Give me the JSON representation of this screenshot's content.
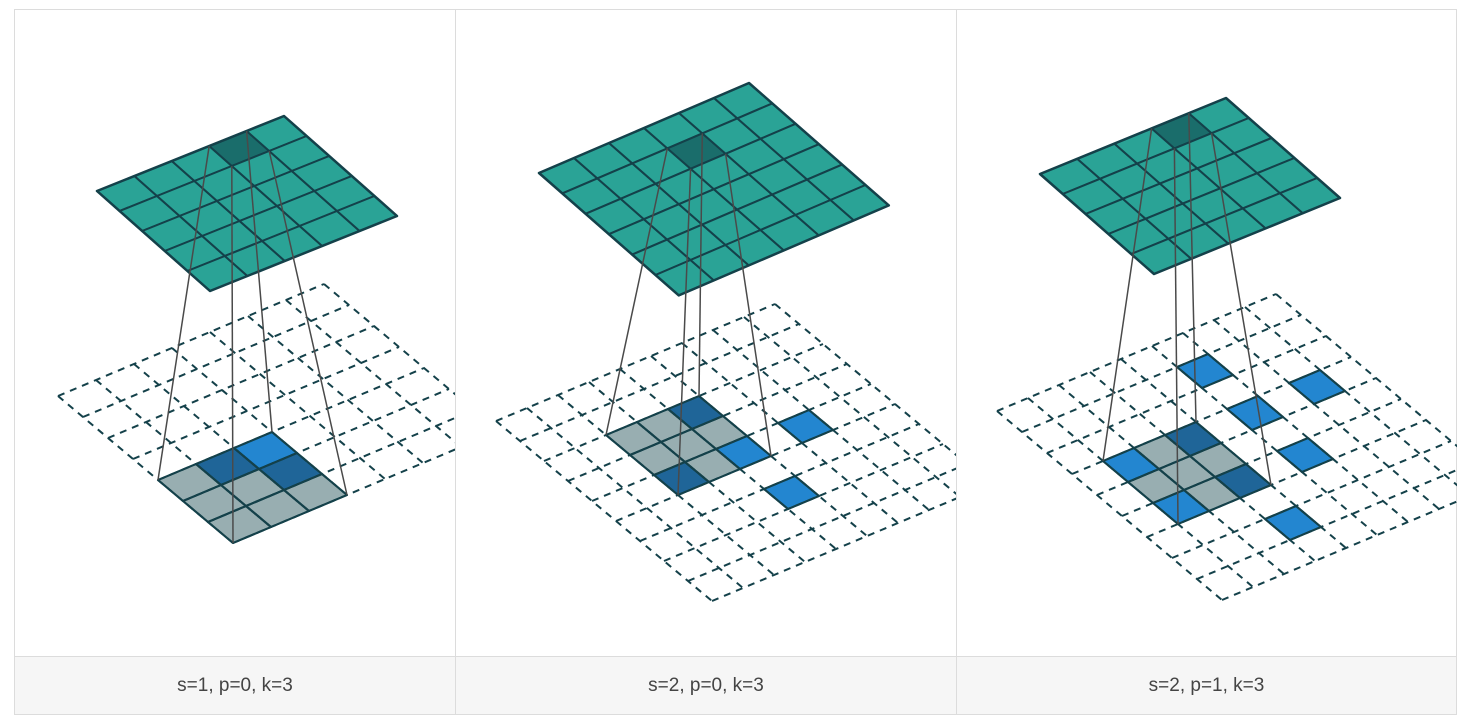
{
  "colors": {
    "output_fill": "#2aa396",
    "output_active": "#1a6d6b",
    "input_gray": "#98aeb1",
    "input_blue": "#2386d0",
    "input_dark_blue": "#1f6598",
    "stroke": "#14414a",
    "lines": "#4a4a4a"
  },
  "panels": [
    {
      "caption": "s=1, p=0, k=3",
      "diagram": {
        "stride": 1,
        "padding": 0,
        "kernel": 3,
        "input_grid": 7,
        "output_grid": 5,
        "active_output_cell": [
          3,
          0
        ],
        "kernel_window": [
          [
            0,
            4
          ],
          [
            1,
            4
          ],
          [
            2,
            4
          ],
          [
            0,
            5
          ],
          [
            1,
            5
          ],
          [
            2,
            5
          ],
          [
            0,
            6
          ],
          [
            1,
            6
          ],
          [
            2,
            6
          ]
        ],
        "blue_cells": [
          [
            1,
            4
          ],
          [
            2,
            4
          ],
          [
            2,
            5
          ]
        ],
        "dark_blue_cells": [
          [
            1,
            4
          ],
          [
            2,
            5
          ]
        ]
      }
    },
    {
      "caption": "s=2, p=0, k=3",
      "diagram": {
        "stride": 2,
        "padding": 0,
        "kernel": 3,
        "input_grid": 9,
        "output_grid": 6,
        "active_output_cell": [
          3,
          1
        ],
        "kernel_window": [
          [
            2,
            2
          ],
          [
            3,
            2
          ],
          [
            4,
            2
          ],
          [
            2,
            3
          ],
          [
            3,
            3
          ],
          [
            4,
            3
          ],
          [
            2,
            4
          ],
          [
            3,
            4
          ],
          [
            4,
            4
          ]
        ],
        "blue_cells": [
          [
            2,
            4
          ],
          [
            4,
            2
          ],
          [
            4,
            4
          ],
          [
            6,
            4
          ],
          [
            4,
            6
          ]
        ],
        "dark_blue_cells": [
          [
            2,
            4
          ],
          [
            4,
            2
          ]
        ]
      }
    },
    {
      "caption": "s=2, p=1, k=3",
      "diagram": {
        "stride": 2,
        "padding": 1,
        "kernel": 3,
        "input_grid": 9,
        "output_grid": 5,
        "active_output_cell": [
          3,
          0
        ],
        "kernel_window": [
          [
            1,
            3
          ],
          [
            2,
            3
          ],
          [
            3,
            3
          ],
          [
            1,
            4
          ],
          [
            2,
            4
          ],
          [
            3,
            4
          ],
          [
            1,
            5
          ],
          [
            2,
            5
          ],
          [
            3,
            5
          ]
        ],
        "blue_cells": [
          [
            1,
            3
          ],
          [
            3,
            3
          ],
          [
            3,
            5
          ],
          [
            5,
            1
          ],
          [
            5,
            3
          ],
          [
            5,
            5
          ],
          [
            1,
            5
          ],
          [
            3,
            7
          ],
          [
            7,
            3
          ]
        ],
        "dark_blue_cells": [
          [
            3,
            3
          ],
          [
            3,
            5
          ]
        ]
      }
    }
  ]
}
